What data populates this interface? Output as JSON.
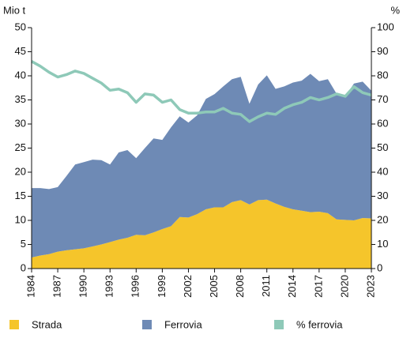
{
  "chart_data": {
    "type": "area",
    "y_label": "Mio t",
    "y2_label": "%",
    "x": [
      1984,
      1985,
      1986,
      1987,
      1988,
      1989,
      1990,
      1991,
      1992,
      1993,
      1994,
      1995,
      1996,
      1997,
      1998,
      1999,
      2000,
      2001,
      2002,
      2003,
      2004,
      2005,
      2006,
      2007,
      2008,
      2009,
      2010,
      2011,
      2012,
      2013,
      2014,
      2015,
      2016,
      2017,
      2018,
      2019,
      2020,
      2021,
      2022,
      2023
    ],
    "xlim": [
      1984,
      2023
    ],
    "xticks": [
      1984,
      1987,
      1990,
      1993,
      1996,
      1999,
      2002,
      2005,
      2008,
      2011,
      2014,
      2017,
      2020,
      2023
    ],
    "ylim": [
      0,
      50
    ],
    "yticks": [
      0,
      5,
      10,
      15,
      20,
      25,
      30,
      35,
      40,
      45,
      50
    ],
    "y2lim": [
      0,
      100
    ],
    "y2ticks": [
      0,
      10,
      20,
      30,
      40,
      50,
      60,
      70,
      80,
      90,
      100
    ],
    "stacked": true,
    "series": [
      {
        "name": "Strada",
        "color": "#f5c52b",
        "values": [
          2.3,
          2.7,
          3.0,
          3.5,
          3.8,
          4.0,
          4.2,
          4.6,
          5.0,
          5.5,
          6.0,
          6.4,
          7.0,
          6.9,
          7.5,
          8.2,
          8.8,
          10.7,
          10.6,
          11.3,
          12.3,
          12.7,
          12.7,
          13.8,
          14.2,
          13.3,
          14.2,
          14.3,
          13.5,
          12.8,
          12.3,
          12.0,
          11.7,
          11.8,
          11.5,
          10.2,
          10.1,
          10.0,
          10.5,
          10.4
        ]
      },
      {
        "name": "Ferrovia",
        "color": "#6e8ab5",
        "values": [
          14.4,
          14.0,
          13.5,
          13.4,
          15.4,
          17.6,
          17.9,
          18.0,
          17.5,
          16.1,
          18.1,
          18.2,
          15.9,
          18.1,
          19.5,
          18.5,
          20.5,
          20.9,
          19.7,
          20.5,
          22.9,
          23.5,
          25.1,
          25.5,
          25.6,
          20.9,
          24.0,
          25.8,
          23.8,
          25.0,
          26.3,
          27.0,
          28.7,
          27.1,
          27.8,
          26.1,
          25.6,
          28.4,
          28.3,
          26.5
        ]
      },
      {
        "name": "% ferrovia",
        "color": "#8ec9b8",
        "axis": "y2",
        "values": [
          86,
          84,
          81.5,
          79.5,
          80.5,
          82,
          81,
          79,
          77,
          74,
          74.5,
          73,
          69,
          72.5,
          72,
          69,
          70,
          66,
          64.5,
          64.5,
          65,
          65,
          66.5,
          64.5,
          64,
          61,
          63,
          64.5,
          64,
          66.5,
          68,
          69,
          71,
          70,
          71,
          72.5,
          71.5,
          75.5,
          73,
          72
        ]
      }
    ]
  }
}
